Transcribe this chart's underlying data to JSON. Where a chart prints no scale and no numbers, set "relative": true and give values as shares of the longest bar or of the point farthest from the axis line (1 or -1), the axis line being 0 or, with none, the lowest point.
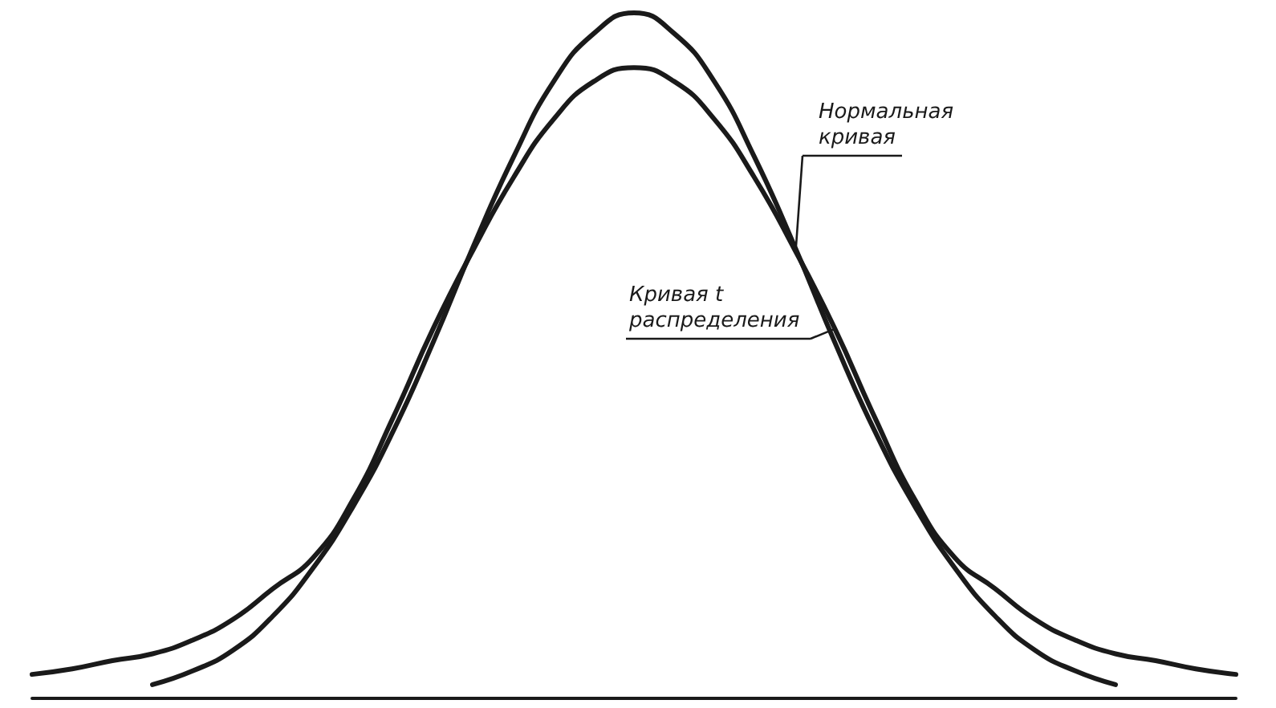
{
  "chart_data": {
    "type": "line",
    "relative": true,
    "categories": [
      null,
      null,
      null,
      null,
      null,
      null,
      null,
      null,
      null,
      null,
      null,
      null,
      null,
      null,
      null,
      null,
      null,
      null,
      null,
      null,
      null,
      null,
      null,
      null,
      null,
      null,
      null,
      null,
      null,
      null,
      null
    ],
    "series": [
      {
        "name": "Нормальная кривая",
        "color": "#1a1a1a",
        "values": [
          null,
          null,
          null,
          0.02,
          0.04,
          0.07,
          0.12,
          0.19,
          0.28,
          0.39,
          0.52,
          0.66,
          0.79,
          0.9,
          0.97,
          1,
          0.97,
          0.9,
          0.79,
          0.66,
          0.52,
          0.39,
          0.28,
          0.19,
          0.12,
          0.07,
          0.04,
          0.02,
          null,
          null,
          null
        ]
      },
      {
        "name": "Кривая t распределения",
        "color": "#1a1a1a",
        "values": [
          0.035,
          0.043,
          0.055,
          0.065,
          0.085,
          0.115,
          0.16,
          0.205,
          0.29,
          0.41,
          0.54,
          0.655,
          0.76,
          0.845,
          0.9,
          0.92,
          0.9,
          0.845,
          0.76,
          0.655,
          0.54,
          0.41,
          0.29,
          0.205,
          0.16,
          0.115,
          0.085,
          0.065,
          0.055,
          0.043,
          0.035
        ]
      }
    ],
    "tick_labels": false,
    "grid": false,
    "legend": false,
    "marker": "none",
    "line_style": "solid"
  }
}
